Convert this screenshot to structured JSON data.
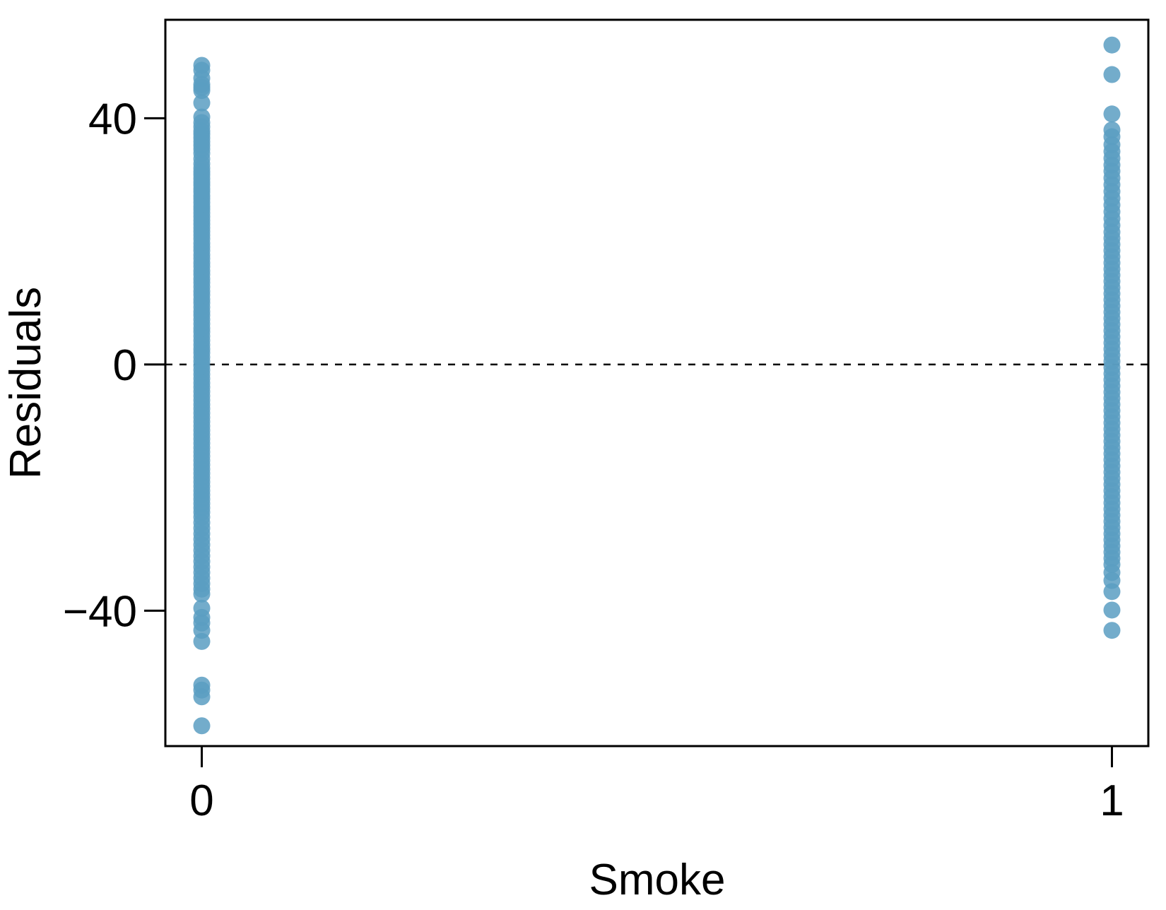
{
  "chart_data": {
    "type": "scatter",
    "title": "",
    "xlabel": "Smoke",
    "ylabel": "Residuals",
    "x_ticks": [
      "0",
      "1"
    ],
    "y_ticks": [
      "−40",
      "0",
      "40"
    ],
    "xlim": [
      -0.04,
      1.04
    ],
    "ylim": [
      -62,
      56
    ],
    "reference_line": {
      "y": 0,
      "style": "dashed"
    },
    "grid": false,
    "legend": "none",
    "point_color": "#5b9dc2",
    "series": [
      {
        "x": 0,
        "y": [
          48.6,
          47.8,
          46.5,
          45.5,
          45.0,
          44.5,
          42.5,
          40.2,
          39.3,
          38.6,
          37.9,
          37.4,
          36.8,
          36.2,
          35.6,
          35.0,
          34.3,
          33.4,
          32.6,
          31.9,
          31.3,
          30.8,
          30.2,
          29.6,
          29.1,
          28.5,
          28.0,
          27.4,
          26.9,
          26.3,
          25.7,
          25.2,
          24.6,
          24.0,
          23.4,
          22.8,
          22.2,
          21.6,
          21.0,
          20.4,
          19.7,
          19.1,
          18.5,
          17.8,
          17.2,
          16.5,
          15.9,
          15.2,
          14.6,
          13.9,
          13.3,
          12.6,
          11.9,
          11.3,
          10.6,
          10.0,
          9.3,
          8.6,
          8.0,
          7.3,
          6.6,
          5.9,
          5.3,
          4.6,
          3.9,
          3.2,
          2.5,
          1.9,
          1.2,
          0.5,
          -0.2,
          -0.9,
          -1.6,
          -2.3,
          -3.0,
          -3.7,
          -4.4,
          -5.1,
          -5.8,
          -6.5,
          -7.2,
          -7.9,
          -8.6,
          -9.3,
          -10.0,
          -10.7,
          -11.4,
          -12.1,
          -12.8,
          -13.5,
          -14.2,
          -14.9,
          -15.6,
          -16.3,
          -17.0,
          -17.7,
          -18.4,
          -19.1,
          -19.8,
          -20.5,
          -21.2,
          -21.9,
          -22.6,
          -23.3,
          -24.0,
          -24.8,
          -25.7,
          -26.6,
          -27.5,
          -28.4,
          -29.3,
          -30.2,
          -31.1,
          -32.0,
          -32.9,
          -33.8,
          -34.7,
          -35.6,
          -36.5,
          -37.3,
          -39.6,
          -41.1,
          -42.0,
          -43.2,
          -45.0,
          -52.1,
          -52.9,
          -54.0,
          -58.7
        ]
      },
      {
        "x": 1,
        "y": [
          51.9,
          47.1,
          40.7,
          38.1,
          37.0,
          35.7,
          34.6,
          33.5,
          32.4,
          31.4,
          30.3,
          29.2,
          28.1,
          27.0,
          25.9,
          24.8,
          23.7,
          22.6,
          21.5,
          20.5,
          19.5,
          18.5,
          17.5,
          16.5,
          15.5,
          14.5,
          13.5,
          12.5,
          11.5,
          10.5,
          9.5,
          8.5,
          7.5,
          6.5,
          5.5,
          4.5,
          3.5,
          2.5,
          1.5,
          0.5,
          -0.5,
          -1.5,
          -2.5,
          -3.5,
          -4.5,
          -5.5,
          -6.5,
          -7.5,
          -8.5,
          -9.5,
          -10.5,
          -11.5,
          -12.5,
          -13.5,
          -14.5,
          -15.5,
          -16.5,
          -17.5,
          -18.5,
          -19.5,
          -20.5,
          -21.5,
          -22.5,
          -23.5,
          -24.5,
          -25.5,
          -26.5,
          -27.5,
          -28.5,
          -29.5,
          -30.5,
          -31.5,
          -32.5,
          -33.8,
          -35.1,
          -36.9,
          -39.9,
          -43.2
        ]
      }
    ]
  }
}
